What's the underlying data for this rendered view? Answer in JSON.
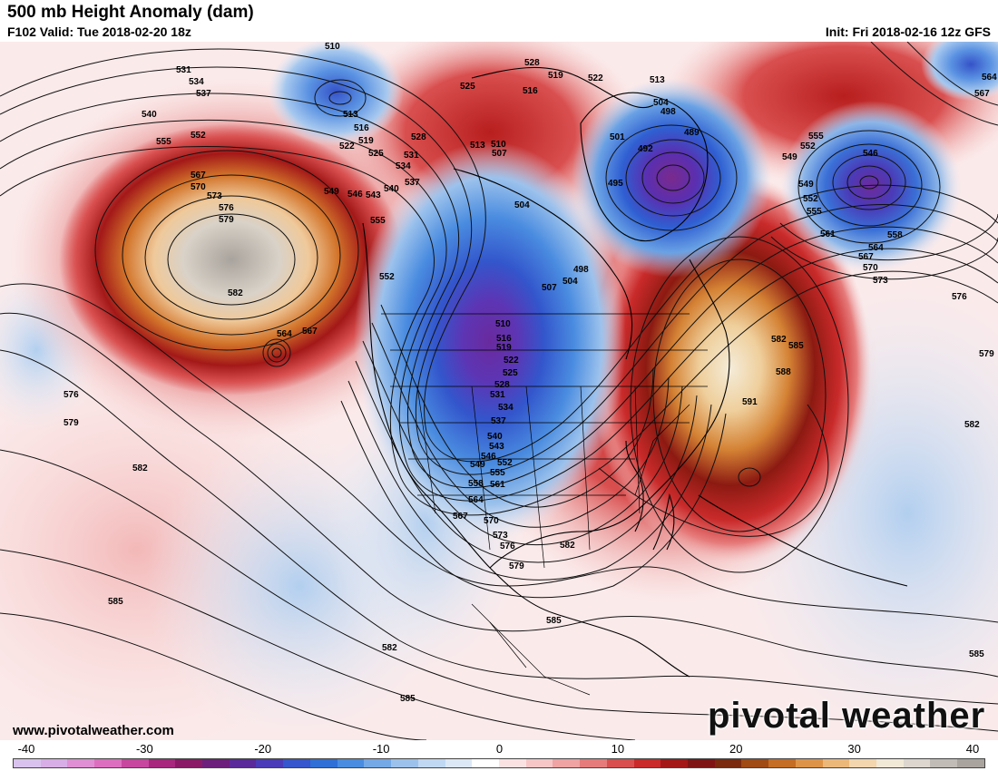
{
  "header": {
    "title": "500 mb Height Anomaly (dam)",
    "valid": "F102 Valid: Tue 2018-02-20 18z",
    "init": "Init: Fri 2018-02-16 12z GFS"
  },
  "footer": {
    "url": "www.pivotalweather.com",
    "logo": "pivotal weather"
  },
  "colorbar": {
    "ticks": [
      "-40",
      "-30",
      "-20",
      "-10",
      "0",
      "10",
      "20",
      "30",
      "40"
    ],
    "colors": [
      "#d9c3ee",
      "#d8aee6",
      "#e08fd4",
      "#dd6fbf",
      "#c7479f",
      "#a8287e",
      "#8a1a66",
      "#6d1f7c",
      "#5a2a9a",
      "#4a3bb8",
      "#3556cc",
      "#2f6fd6",
      "#4a8ce0",
      "#74a9e6",
      "#9cc2ec",
      "#c0d8f2",
      "#dce8f6",
      "#ffffff",
      "#fbe2e2",
      "#f6c6c6",
      "#efa3a3",
      "#e67b7b",
      "#d94f4f",
      "#c92a2a",
      "#a41717",
      "#7f1414",
      "#7a2a0e",
      "#a04a14",
      "#c46d24",
      "#de9448",
      "#ecb87a",
      "#f3d6ae",
      "#f1e8d6",
      "#dcd6cf",
      "#c2bcb6",
      "#aaa49f"
    ]
  },
  "map": {
    "contour_labels": [
      "510",
      "513",
      "516",
      "519",
      "522",
      "525",
      "528",
      "531",
      "534",
      "537",
      "540",
      "543",
      "546",
      "549",
      "552",
      "555",
      "558",
      "561",
      "564",
      "567",
      "570",
      "573",
      "576",
      "579",
      "582",
      "585",
      "588",
      "591",
      "504",
      "501",
      "498",
      "495",
      "492",
      "489"
    ],
    "label_placements": [
      {
        "text": "510",
        "lx": 358,
        "ly": 8
      },
      {
        "text": "531",
        "lx": 194,
        "ly": 34
      },
      {
        "text": "534",
        "lx": 208,
        "ly": 47
      },
      {
        "text": "537",
        "lx": 216,
        "ly": 60
      },
      {
        "text": "540",
        "lx": 156,
        "ly": 83
      },
      {
        "text": "552",
        "lx": 210,
        "ly": 106
      },
      {
        "text": "555",
        "lx": 172,
        "ly": 113
      },
      {
        "text": "567",
        "lx": 210,
        "ly": 150
      },
      {
        "text": "570",
        "lx": 210,
        "ly": 163
      },
      {
        "text": "573",
        "lx": 228,
        "ly": 173
      },
      {
        "text": "576",
        "lx": 241,
        "ly": 186
      },
      {
        "text": "579",
        "lx": 241,
        "ly": 199
      },
      {
        "text": "582",
        "lx": 251,
        "ly": 280
      },
      {
        "text": "564",
        "lx": 305,
        "ly": 325
      },
      {
        "text": "567",
        "lx": 333,
        "ly": 322
      },
      {
        "text": "513",
        "lx": 378,
        "ly": 83
      },
      {
        "text": "516",
        "lx": 390,
        "ly": 98
      },
      {
        "text": "519",
        "lx": 395,
        "ly": 112
      },
      {
        "text": "522",
        "lx": 374,
        "ly": 118
      },
      {
        "text": "525",
        "lx": 406,
        "ly": 126
      },
      {
        "text": "528",
        "lx": 453,
        "ly": 108
      },
      {
        "text": "531",
        "lx": 445,
        "ly": 128
      },
      {
        "text": "534",
        "lx": 436,
        "ly": 140
      },
      {
        "text": "537",
        "lx": 446,
        "ly": 158
      },
      {
        "text": "540",
        "lx": 423,
        "ly": 165
      },
      {
        "text": "543",
        "lx": 403,
        "ly": 172
      },
      {
        "text": "546",
        "lx": 383,
        "ly": 171
      },
      {
        "text": "549",
        "lx": 357,
        "ly": 168
      },
      {
        "text": "555",
        "lx": 408,
        "ly": 200
      },
      {
        "text": "552",
        "lx": 418,
        "ly": 262
      },
      {
        "text": "525",
        "lx": 507,
        "ly": 52
      },
      {
        "text": "528",
        "lx": 578,
        "ly": 26
      },
      {
        "text": "519",
        "lx": 604,
        "ly": 40
      },
      {
        "text": "516",
        "lx": 576,
        "ly": 57
      },
      {
        "text": "522",
        "lx": 648,
        "ly": 43
      },
      {
        "text": "513",
        "lx": 716,
        "ly": 45
      },
      {
        "text": "504",
        "lx": 720,
        "ly": 70
      },
      {
        "text": "498",
        "lx": 728,
        "ly": 80
      },
      {
        "text": "501",
        "lx": 672,
        "ly": 108
      },
      {
        "text": "489",
        "lx": 754,
        "ly": 103
      },
      {
        "text": "492",
        "lx": 703,
        "ly": 121
      },
      {
        "text": "495",
        "lx": 670,
        "ly": 159
      },
      {
        "text": "513",
        "lx": 518,
        "ly": 117
      },
      {
        "text": "510",
        "lx": 541,
        "ly": 116
      },
      {
        "text": "507",
        "lx": 542,
        "ly": 126
      },
      {
        "text": "504",
        "lx": 567,
        "ly": 183
      },
      {
        "text": "498",
        "lx": 632,
        "ly": 254
      },
      {
        "text": "504",
        "lx": 620,
        "ly": 267
      },
      {
        "text": "507",
        "lx": 597,
        "ly": 274
      },
      {
        "text": "510",
        "lx": 546,
        "ly": 314
      },
      {
        "text": "516",
        "lx": 547,
        "ly": 330
      },
      {
        "text": "519",
        "lx": 547,
        "ly": 340
      },
      {
        "text": "522",
        "lx": 555,
        "ly": 354
      },
      {
        "text": "525",
        "lx": 554,
        "ly": 368
      },
      {
        "text": "528",
        "lx": 545,
        "ly": 381
      },
      {
        "text": "531",
        "lx": 540,
        "ly": 392
      },
      {
        "text": "534",
        "lx": 549,
        "ly": 406
      },
      {
        "text": "537",
        "lx": 541,
        "ly": 421
      },
      {
        "text": "540",
        "lx": 537,
        "ly": 438
      },
      {
        "text": "543",
        "lx": 539,
        "ly": 449
      },
      {
        "text": "546",
        "lx": 530,
        "ly": 460
      },
      {
        "text": "549",
        "lx": 518,
        "ly": 469
      },
      {
        "text": "552",
        "lx": 548,
        "ly": 467
      },
      {
        "text": "555",
        "lx": 540,
        "ly": 478
      },
      {
        "text": "558",
        "lx": 516,
        "ly": 490
      },
      {
        "text": "561",
        "lx": 540,
        "ly": 491
      },
      {
        "text": "564",
        "lx": 516,
        "ly": 508
      },
      {
        "text": "567",
        "lx": 499,
        "ly": 526
      },
      {
        "text": "570",
        "lx": 533,
        "ly": 531
      },
      {
        "text": "573",
        "lx": 543,
        "ly": 547
      },
      {
        "text": "576",
        "lx": 551,
        "ly": 559
      },
      {
        "text": "579",
        "lx": 561,
        "ly": 581
      },
      {
        "text": "582",
        "lx": 617,
        "ly": 558
      },
      {
        "text": "585",
        "lx": 602,
        "ly": 641
      },
      {
        "text": "555",
        "lx": 891,
        "ly": 107
      },
      {
        "text": "552",
        "lx": 882,
        "ly": 118
      },
      {
        "text": "546",
        "lx": 951,
        "ly": 126
      },
      {
        "text": "549",
        "lx": 862,
        "ly": 130
      },
      {
        "text": "549",
        "lx": 880,
        "ly": 160
      },
      {
        "text": "552",
        "lx": 885,
        "ly": 176
      },
      {
        "text": "555",
        "lx": 889,
        "ly": 190
      },
      {
        "text": "561",
        "lx": 904,
        "ly": 215
      },
      {
        "text": "558",
        "lx": 978,
        "ly": 216
      },
      {
        "text": "564",
        "lx": 957,
        "ly": 230
      },
      {
        "text": "567",
        "lx": 946,
        "ly": 240
      },
      {
        "text": "570",
        "lx": 951,
        "ly": 252
      },
      {
        "text": "573",
        "lx": 962,
        "ly": 266
      },
      {
        "text": "576",
        "lx": 1049,
        "ly": 284
      },
      {
        "text": "579",
        "lx": 1079,
        "ly": 347
      },
      {
        "text": "582",
        "lx": 850,
        "ly": 331
      },
      {
        "text": "585",
        "lx": 869,
        "ly": 338
      },
      {
        "text": "588",
        "lx": 855,
        "ly": 367
      },
      {
        "text": "591",
        "lx": 818,
        "ly": 400
      },
      {
        "text": "582",
        "lx": 1063,
        "ly": 425
      },
      {
        "text": "564",
        "lx": 1082,
        "ly": 42
      },
      {
        "text": "567",
        "lx": 1074,
        "ly": 60
      },
      {
        "text": "576",
        "lx": 70,
        "ly": 392
      },
      {
        "text": "579",
        "lx": 70,
        "ly": 423
      },
      {
        "text": "582",
        "lx": 146,
        "ly": 473
      },
      {
        "text": "585",
        "lx": 119,
        "ly": 620
      },
      {
        "text": "582",
        "lx": 421,
        "ly": 671
      },
      {
        "text": "585",
        "lx": 441,
        "ly": 727
      },
      {
        "text": "585",
        "lx": 1068,
        "ly": 678
      }
    ],
    "cities_visible": false
  }
}
